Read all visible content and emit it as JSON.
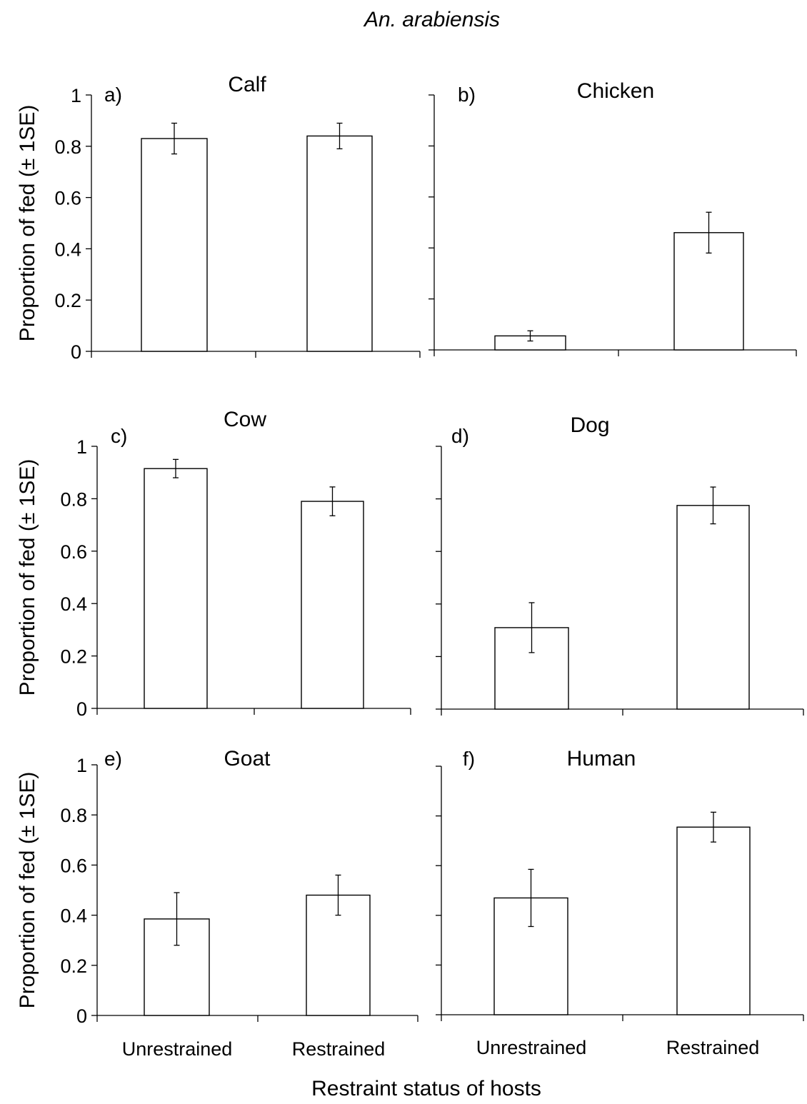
{
  "figure": {
    "title": "An. arabiensis",
    "xlabel": "Restraint status of hosts",
    "ylabel": "Proportion of fed (± 1SE)",
    "categories_left": [
      "Unrestrained",
      "Restrained"
    ],
    "categories_right": [
      "Unrestrained",
      "Restrained"
    ]
  },
  "chart_data": [
    {
      "type": "bar",
      "panel_label": "a)",
      "title": "Calf",
      "categories": [
        "Unrestrained",
        "Restrained"
      ],
      "values": [
        0.83,
        0.84
      ],
      "errors": [
        0.06,
        0.05
      ],
      "ylim": [
        0,
        1
      ],
      "yticks": [
        "0",
        "0.2",
        "0.4",
        "0.6",
        "0.8",
        "1"
      ],
      "ylabel": "Proportion of fed (± 1SE)"
    },
    {
      "type": "bar",
      "panel_label": "b)",
      "title": "Chicken",
      "categories": [
        "Unrestrained",
        "Restrained"
      ],
      "values": [
        0.055,
        0.46
      ],
      "errors": [
        0.02,
        0.08
      ],
      "ylim": [
        0,
        1
      ],
      "yticks": [],
      "ylabel": ""
    },
    {
      "type": "bar",
      "panel_label": "c)",
      "title": "Cow",
      "categories": [
        "Unrestrained",
        "Restrained"
      ],
      "values": [
        0.915,
        0.79
      ],
      "errors": [
        0.035,
        0.055
      ],
      "ylim": [
        0,
        1
      ],
      "yticks": [
        "0",
        "0.2",
        "0.4",
        "0.6",
        "0.8",
        "1"
      ],
      "ylabel": "Proportion of fed (± 1SE)"
    },
    {
      "type": "bar",
      "panel_label": "d)",
      "title": "Dog",
      "categories": [
        "Unrestrained",
        "Restrained"
      ],
      "values": [
        0.31,
        0.775
      ],
      "errors": [
        0.095,
        0.07
      ],
      "ylim": [
        0,
        1
      ],
      "yticks": [],
      "ylabel": ""
    },
    {
      "type": "bar",
      "panel_label": "e)",
      "title": "Goat",
      "categories": [
        "Unrestrained",
        "Restrained"
      ],
      "values": [
        0.385,
        0.48
      ],
      "errors": [
        0.105,
        0.08
      ],
      "ylim": [
        0,
        1
      ],
      "yticks": [
        "0",
        "0.2",
        "0.4",
        "0.6",
        "0.8",
        "1"
      ],
      "ylabel": "Proportion of fed (± 1SE)"
    },
    {
      "type": "bar",
      "panel_label": "f)",
      "title": "Human",
      "categories": [
        "Unrestrained",
        "Restrained"
      ],
      "values": [
        0.47,
        0.755
      ],
      "errors": [
        0.115,
        0.06
      ],
      "ylim": [
        0,
        1
      ],
      "yticks": [],
      "ylabel": ""
    }
  ]
}
